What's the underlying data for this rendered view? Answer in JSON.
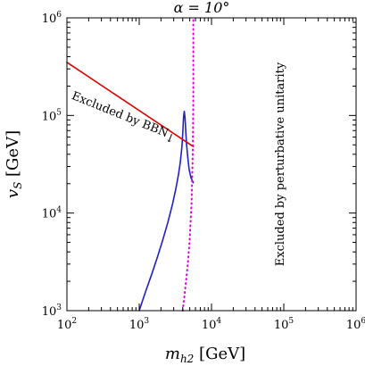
{
  "chart_data": {
    "type": "line",
    "title": "α = 10°",
    "xlabel": {
      "main": "m",
      "sub": "h2",
      "unit": " [GeV]"
    },
    "ylabel": {
      "main": "v",
      "sub": "S",
      "unit": " [GeV]"
    },
    "xscale": "log",
    "yscale": "log",
    "xlim": [
      100,
      1000000
    ],
    "ylim": [
      1000,
      1000000
    ],
    "x_ticks": [
      {
        "base": "10",
        "exp": "2",
        "value": 100
      },
      {
        "base": "10",
        "exp": "3",
        "value": 1000
      },
      {
        "base": "10",
        "exp": "4",
        "value": 10000
      },
      {
        "base": "10",
        "exp": "5",
        "value": 100000
      },
      {
        "base": "10",
        "exp": "6",
        "value": 1000000
      }
    ],
    "y_ticks": [
      {
        "base": "10",
        "exp": "3",
        "value": 1000
      },
      {
        "base": "10",
        "exp": "4",
        "value": 10000
      },
      {
        "base": "10",
        "exp": "5",
        "value": 100000
      },
      {
        "base": "10",
        "exp": "6",
        "value": 1000000
      }
    ],
    "grid": false,
    "series": [
      {
        "color": "#2020c8",
        "style": "solid",
        "x": [
          1000,
          1200,
          1500,
          1800,
          2100,
          2500,
          2900,
          3200,
          3500,
          3700,
          3900,
          4000,
          4100,
          4200,
          4300,
          4400,
          4500,
          4700,
          4900,
          5200,
          5600
        ],
        "y": [
          1000,
          1500,
          2400,
          3600,
          5200,
          8100,
          12500,
          17500,
          25000,
          33000,
          48000,
          65000,
          95000,
          110000,
          95000,
          70000,
          52000,
          37000,
          28000,
          23000,
          20500
        ]
      },
      {
        "color": "#e00000",
        "style": "solid",
        "x": [
          100,
          5600
        ],
        "y": [
          350000,
          48000
        ]
      },
      {
        "color": "#e000e0",
        "style": "dotted",
        "x": [
          4000,
          4300,
          4700,
          5000,
          5300,
          5500,
          5600,
          5600
        ],
        "y": [
          1000,
          1600,
          3000,
          5500,
          13000,
          40000,
          150000,
          1000000
        ]
      }
    ],
    "annotations": [
      {
        "text": "Excluded by BBN",
        "arrow": "↓"
      },
      {
        "text": "Excluded by perturbative unitarity"
      }
    ]
  }
}
